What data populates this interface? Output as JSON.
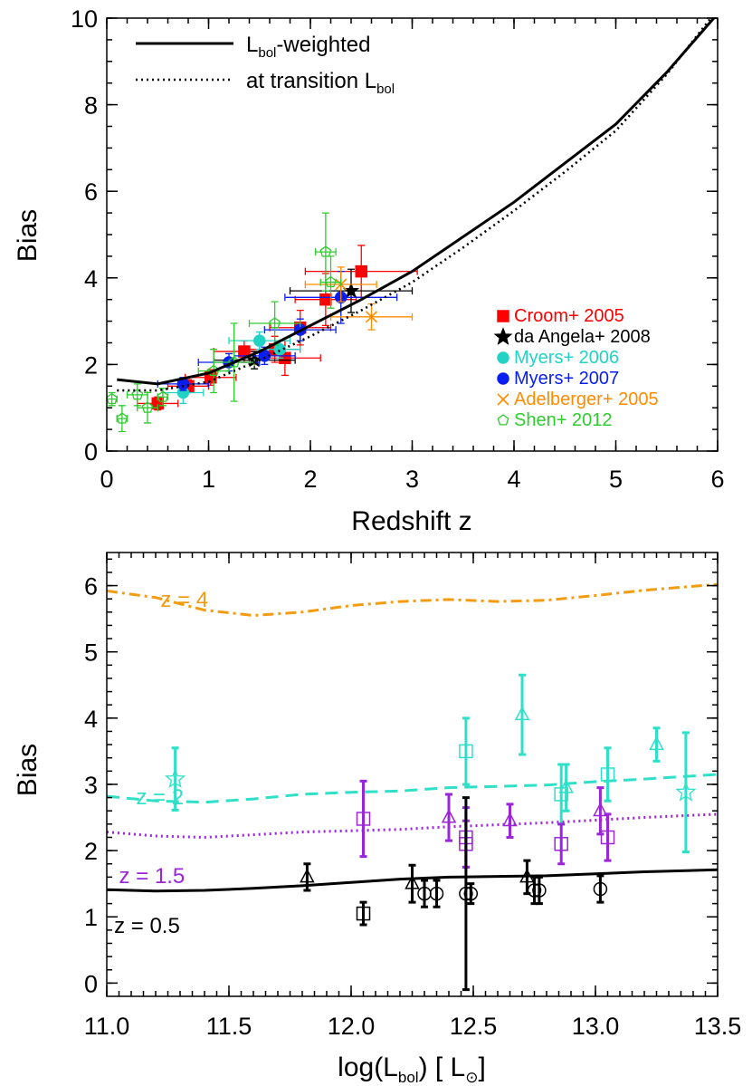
{
  "colors": {
    "croom": "#ff0000",
    "daangela": "#000000",
    "myers2006": "#22d3c5",
    "myers2007": "#0a1eef",
    "adelberger": "#ff8c00",
    "shen": "#2ecc2e",
    "z4": "#f39c12",
    "z2": "#2fe0c8",
    "z15": "#9b26d9",
    "z05": "#000000"
  },
  "chart_data": [
    {
      "type": "line",
      "xlabel": "Redshift z",
      "ylabel": "Bias",
      "xlim": [
        0,
        6
      ],
      "ylim": [
        0,
        10
      ],
      "xticks": [
        0,
        1,
        2,
        3,
        4,
        5,
        6
      ],
      "yticks": [
        0,
        2,
        4,
        6,
        8,
        10
      ],
      "grid": false,
      "legend_lines": [
        {
          "name": "L_bol-weighted",
          "main": "L",
          "sub": "bol",
          "suffix": "-weighted",
          "dash": "solid"
        },
        {
          "name": "at transition L_bol",
          "main": "at transition L",
          "sub": "bol",
          "suffix": "",
          "dash": "dotted"
        }
      ],
      "legend_lines_position": "top-left",
      "legend_markers_position": "bottom-right",
      "series": [
        {
          "name": "L_bol-weighted",
          "dash": "solid",
          "x": [
            0.1,
            0.5,
            1.0,
            1.5,
            2.0,
            2.5,
            3.0,
            3.5,
            4.0,
            4.5,
            5.0,
            5.5,
            6.0
          ],
          "y": [
            1.65,
            1.55,
            1.8,
            2.3,
            2.9,
            3.5,
            4.15,
            4.95,
            5.75,
            6.65,
            7.55,
            8.75,
            10.1
          ]
        },
        {
          "name": "at transition L_bol",
          "dash": "dotted",
          "x": [
            0.1,
            0.5,
            1.0,
            1.5,
            2.0,
            2.5,
            3.0,
            3.5,
            4.0,
            4.5,
            5.0,
            5.5,
            6.0
          ],
          "y": [
            1.4,
            1.4,
            1.6,
            2.1,
            2.65,
            3.25,
            3.9,
            4.7,
            5.55,
            6.45,
            7.4,
            8.7,
            10.2
          ]
        }
      ],
      "points": [
        {
          "name": "Croom+ 2005",
          "marker": "square",
          "color": "#ff0000",
          "data": [
            [
              0.5,
              1.1,
              0.2,
              0.15
            ],
            [
              0.8,
              1.5,
              0.2,
              0.15
            ],
            [
              1.02,
              1.7,
              0.25,
              0.18
            ],
            [
              1.35,
              2.3,
              0.3,
              0.25
            ],
            [
              1.65,
              2.35,
              0.25,
              0.3
            ],
            [
              1.9,
              2.85,
              0.3,
              0.4
            ],
            [
              1.75,
              2.15,
              0.35,
              0.4
            ],
            [
              2.15,
              3.5,
              0.3,
              0.6
            ],
            [
              2.5,
              4.15,
              0.55,
              0.6
            ]
          ]
        },
        {
          "name": "da Angela+ 2008",
          "marker": "star",
          "color": "#000000",
          "data": [
            [
              1.45,
              2.1,
              0.4,
              0.2
            ],
            [
              2.4,
              3.7,
              0.6,
              0.5
            ]
          ]
        },
        {
          "name": "Myers+ 2006",
          "marker": "circle",
          "color": "#22d3c5",
          "data": [
            [
              0.75,
              1.35,
              0.2,
              0.25
            ],
            [
              1.5,
              2.55,
              0.3,
              0.2
            ],
            [
              1.7,
              2.35,
              0.2,
              0.2
            ]
          ]
        },
        {
          "name": "Myers+ 2007",
          "marker": "circle",
          "color": "#0a1eef",
          "data": [
            [
              0.75,
              1.55,
              0.25,
              0.15
            ],
            [
              1.2,
              2.05,
              0.3,
              0.2
            ],
            [
              1.55,
              2.2,
              0.3,
              0.2
            ],
            [
              1.9,
              2.8,
              0.35,
              0.25
            ],
            [
              2.3,
              3.55,
              0.55,
              0.6
            ]
          ]
        },
        {
          "name": "Adelberger+ 2005",
          "marker": "x",
          "color": "#ff8c00",
          "data": [
            [
              2.6,
              3.1,
              0.4,
              0.3
            ],
            [
              2.3,
              3.85,
              0.35,
              0.4
            ]
          ]
        },
        {
          "name": "Shen+ 2012",
          "marker": "pentagon",
          "color": "#2ecc2e",
          "data": [
            [
              0.05,
              1.2,
              0.05,
              0.15
            ],
            [
              0.15,
              0.75,
              0.05,
              0.3
            ],
            [
              0.3,
              1.3,
              0.1,
              0.25
            ],
            [
              0.4,
              1.0,
              0.1,
              0.35
            ],
            [
              0.55,
              1.25,
              0.05,
              0.2
            ],
            [
              1.05,
              1.85,
              0.15,
              0.5
            ],
            [
              1.25,
              2.05,
              0.2,
              0.9
            ],
            [
              1.65,
              2.95,
              0.25,
              0.5
            ],
            [
              2.15,
              4.6,
              0.1,
              0.9
            ],
            [
              2.2,
              3.9,
              0.1,
              0.6
            ]
          ]
        }
      ]
    },
    {
      "type": "line",
      "xlabel": "log(L_bol)  [ L_sun ]",
      "xlabel_parts": {
        "pre": "log(L",
        "sub": "bol",
        "mid": ")  [ L",
        "sub2": "⊙",
        "post": "]"
      },
      "ylabel": "Bias",
      "xlim": [
        11.0,
        13.5
      ],
      "ylim": [
        -0.2,
        6.5
      ],
      "xticks": [
        "11.0",
        "11.5",
        "12.0",
        "12.5",
        "13.0",
        "13.5"
      ],
      "yticks": [
        0,
        1,
        2,
        3,
        4,
        5,
        6
      ],
      "grid": false,
      "series": [
        {
          "name": "z = 4",
          "dash": "dashdot",
          "color": "#f39c12",
          "x": [
            11.0,
            11.2,
            11.4,
            11.6,
            11.8,
            12.0,
            12.2,
            12.4,
            12.6,
            12.8,
            13.0,
            13.2,
            13.5
          ],
          "y": [
            5.92,
            5.82,
            5.63,
            5.55,
            5.6,
            5.7,
            5.76,
            5.79,
            5.76,
            5.78,
            5.85,
            5.93,
            6.02
          ]
        },
        {
          "name": "z = 2",
          "dash": "dashed",
          "color": "#2fe0c8",
          "x": [
            11.0,
            11.2,
            11.4,
            11.6,
            11.8,
            12.0,
            12.2,
            12.4,
            12.6,
            12.8,
            13.0,
            13.2,
            13.5
          ],
          "y": [
            2.82,
            2.75,
            2.73,
            2.78,
            2.85,
            2.88,
            2.9,
            2.95,
            2.97,
            2.99,
            3.04,
            3.08,
            3.15
          ]
        },
        {
          "name": "z = 1.5",
          "dash": "dotted",
          "color": "#9b26d9",
          "x": [
            11.0,
            11.2,
            11.4,
            11.6,
            11.8,
            12.0,
            12.2,
            12.4,
            12.6,
            12.8,
            13.0,
            13.2,
            13.5
          ],
          "y": [
            2.28,
            2.22,
            2.2,
            2.24,
            2.28,
            2.3,
            2.32,
            2.36,
            2.39,
            2.42,
            2.46,
            2.5,
            2.55
          ]
        },
        {
          "name": "z = 0.5",
          "dash": "solid",
          "color": "#000000",
          "x": [
            11.0,
            11.2,
            11.4,
            11.6,
            11.8,
            12.0,
            12.2,
            12.4,
            12.6,
            12.8,
            13.0,
            13.2,
            13.5
          ],
          "y": [
            1.41,
            1.39,
            1.4,
            1.43,
            1.47,
            1.52,
            1.57,
            1.6,
            1.61,
            1.62,
            1.65,
            1.68,
            1.71
          ]
        }
      ],
      "curve_labels": [
        {
          "text": "z = 4",
          "x": 11.22,
          "y": 5.8,
          "color": "#f39c12"
        },
        {
          "text": "z = 2",
          "x": 11.12,
          "y": 2.82,
          "color": "#2fe0c8"
        },
        {
          "text": "z = 1.5",
          "x": 11.05,
          "y": 1.63,
          "color": "#9b26d9"
        },
        {
          "text": "z = 0.5",
          "x": 11.03,
          "y": 0.88,
          "color": "#000000"
        }
      ],
      "points": [
        {
          "group": "z=2",
          "marker": "star",
          "color": "#2fe0c8",
          "data": [
            [
              11.28,
              3.08,
              0.47
            ],
            [
              13.37,
              2.88,
              0.9
            ]
          ]
        },
        {
          "group": "z=2",
          "marker": "square",
          "color": "#2fe0c8",
          "data": [
            [
              12.47,
              3.5,
              0.5
            ],
            [
              12.86,
              2.85,
              0.45
            ],
            [
              13.05,
              3.15,
              0.4
            ]
          ]
        },
        {
          "group": "z=2",
          "marker": "triangle",
          "color": "#2fe0c8",
          "data": [
            [
              12.7,
              4.05,
              0.6
            ],
            [
              12.88,
              2.95,
              0.35
            ],
            [
              13.25,
              3.6,
              0.25
            ]
          ]
        },
        {
          "group": "z=1.5",
          "marker": "square",
          "color": "#9b26d9",
          "data": [
            [
              12.05,
              2.48,
              0.57
            ],
            [
              12.47,
              2.2,
              0.45
            ],
            [
              12.47,
              2.1,
              0.35
            ],
            [
              12.86,
              2.1,
              0.3
            ],
            [
              13.05,
              2.2,
              0.35
            ]
          ]
        },
        {
          "group": "z=1.5",
          "marker": "triangle",
          "color": "#9b26d9",
          "data": [
            [
              12.4,
              2.5,
              0.35
            ],
            [
              12.65,
              2.45,
              0.25
            ],
            [
              13.02,
              2.6,
              0.35
            ]
          ]
        },
        {
          "group": "z=0.5",
          "marker": "square",
          "color": "#000000",
          "data": [
            [
              12.05,
              1.05,
              0.17
            ]
          ]
        },
        {
          "group": "z=0.5",
          "marker": "triangle",
          "color": "#000000",
          "data": [
            [
              11.82,
              1.6,
              0.2
            ],
            [
              12.25,
              1.5,
              0.28
            ],
            [
              12.72,
              1.6,
              0.25
            ]
          ]
        },
        {
          "group": "z=0.5",
          "marker": "circle",
          "color": "#000000",
          "data": [
            [
              12.3,
              1.35,
              0.2
            ],
            [
              12.35,
              1.35,
              0.2
            ],
            [
              12.47,
              1.35,
              1.45
            ],
            [
              12.49,
              1.35,
              0.15
            ],
            [
              12.75,
              1.4,
              0.2
            ],
            [
              12.77,
              1.4,
              0.2
            ],
            [
              13.02,
              1.42,
              0.2
            ]
          ]
        }
      ]
    }
  ]
}
